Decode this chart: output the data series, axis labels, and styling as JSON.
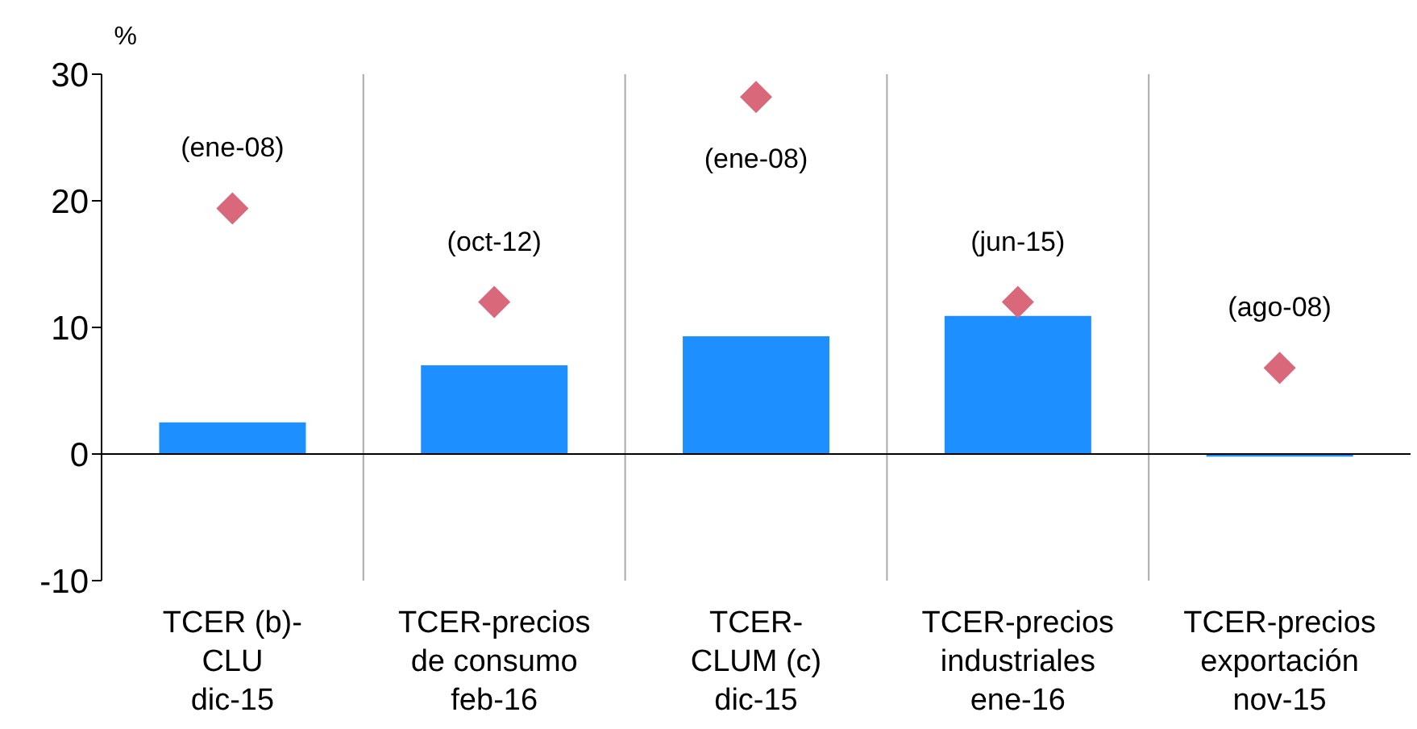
{
  "chart_data": {
    "type": "bar",
    "ylabel": "%",
    "categories": [
      "TCER (b)-\nCLU\ndic-15",
      "TCER-precios\nde consumo\nfeb-16",
      "TCER-\nCLUM (c)\ndic-15",
      "TCER-precios\nindustriales\nene-16",
      "TCER-precios\nexportación\nnov-15"
    ],
    "series": [
      {
        "color": "#1e8fff",
        "values": [
          2.5,
          7.0,
          9.3,
          10.9,
          -0.2
        ]
      },
      {
        "type": "scatter",
        "color": "#d9687a",
        "marker": "diamond",
        "values": [
          19.4,
          12.0,
          28.2,
          12.0,
          6.8
        ]
      }
    ],
    "annotations": [
      {
        "text": "(ene-08)",
        "x": "TCER (b)-\nCLU\ndic-15",
        "y": 19.4
      },
      {
        "text": "(oct-12)",
        "x": "TCER-precios\nde consumo\nfeb-16",
        "y": 12.0
      },
      {
        "text": "(ene-08)",
        "x": "TCER-\nCLUM (c)\ndic-15",
        "y": 28.2
      },
      {
        "text": "(jun-15)",
        "x": "TCER-precios\nindustriales\nene-16",
        "y": 12.0
      },
      {
        "text": "(ago-08)",
        "x": "TCER-precios\nexportación\nnov-15",
        "y": 6.8
      }
    ],
    "ylim": [
      -10,
      30
    ],
    "yticks": [
      -10,
      0,
      10,
      20,
      30
    ],
    "grid": "x",
    "ref_lines": [
      {
        "axis": "y",
        "value": 0,
        "color": "#000000"
      }
    ]
  }
}
